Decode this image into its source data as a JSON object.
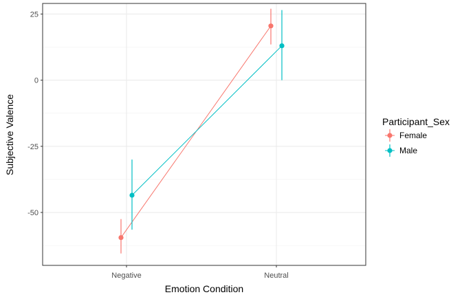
{
  "chart_data": {
    "type": "line",
    "title": "",
    "xlabel": "Emotion Condition",
    "ylabel": "Subjective Valence",
    "categories": [
      "Negative",
      "Neutral"
    ],
    "ylim": [
      -70,
      29
    ],
    "yticks": [
      -50,
      -25,
      0,
      25
    ],
    "ytick_labels": [
      "-50",
      "-25",
      "0",
      "25"
    ],
    "grid": true,
    "legend": {
      "title": "Participant_Sex",
      "position": "right"
    },
    "series": [
      {
        "name": "Female",
        "color": "#F8766D",
        "values": [
          -59.5,
          20.5
        ],
        "lower": [
          -65.5,
          13.5
        ],
        "upper": [
          -52.5,
          27.0
        ]
      },
      {
        "name": "Male",
        "color": "#00BFC4",
        "values": [
          -43.5,
          13.0
        ],
        "lower": [
          -56.5,
          0.0
        ],
        "upper": [
          -30.0,
          26.5
        ]
      }
    ]
  }
}
